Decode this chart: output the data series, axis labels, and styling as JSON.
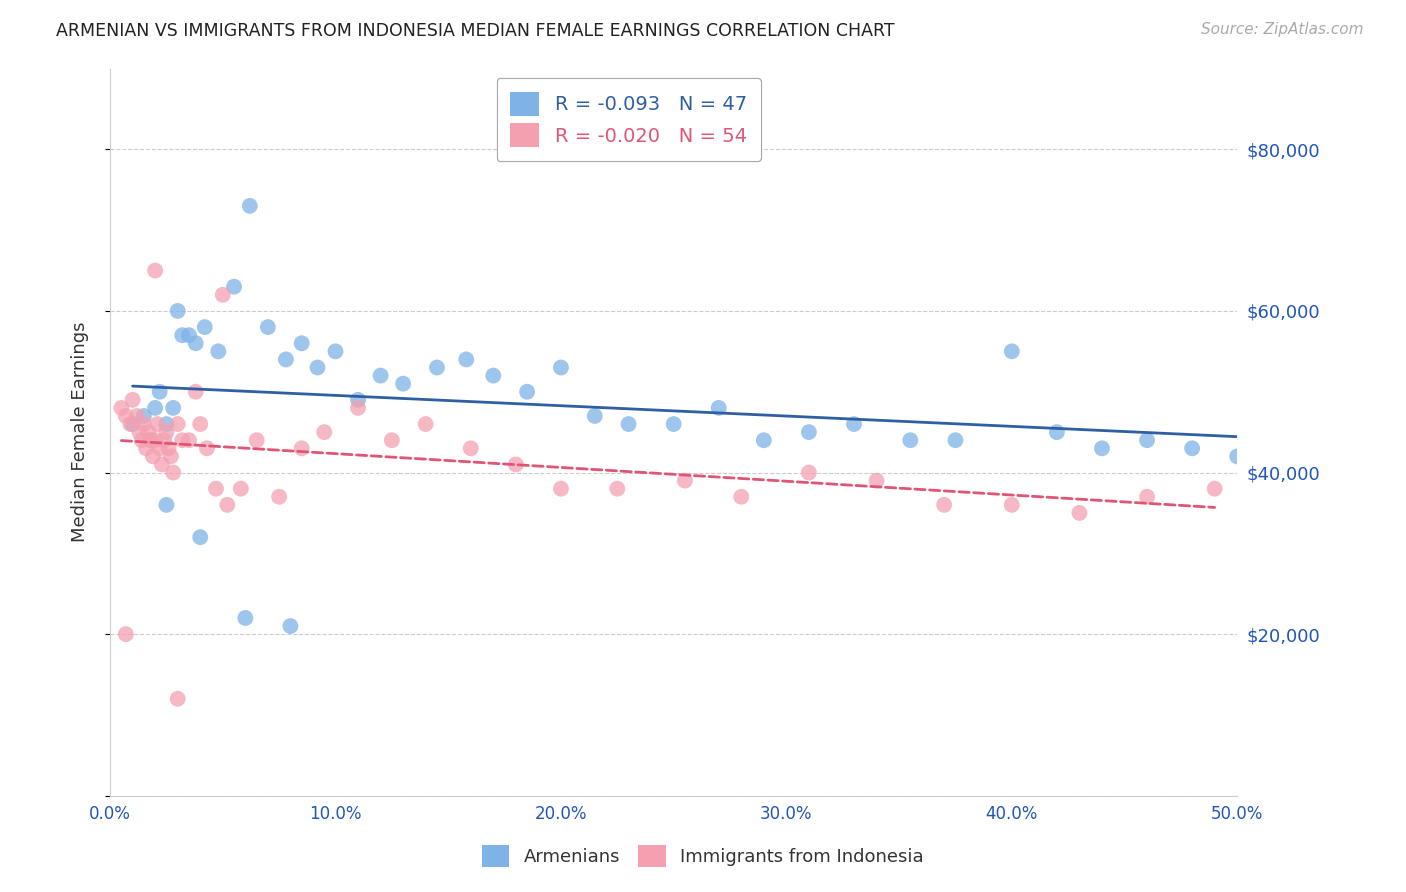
{
  "title": "ARMENIAN VS IMMIGRANTS FROM INDONESIA MEDIAN FEMALE EARNINGS CORRELATION CHART",
  "source": "Source: ZipAtlas.com",
  "ylabel": "Median Female Earnings",
  "xlim": [
    0.0,
    0.5
  ],
  "ylim": [
    0,
    90000
  ],
  "yticks": [
    0,
    20000,
    40000,
    60000,
    80000
  ],
  "ytick_labels_right": [
    "",
    "$20,000",
    "$40,000",
    "$60,000",
    "$80,000"
  ],
  "xtick_labels": [
    "0.0%",
    "10.0%",
    "20.0%",
    "30.0%",
    "40.0%",
    "50.0%"
  ],
  "xticks": [
    0.0,
    0.1,
    0.2,
    0.3,
    0.4,
    0.5
  ],
  "blue_color": "#7EB3E8",
  "pink_color": "#F4A0B0",
  "blue_line_color": "#2E5FA3",
  "pink_line_color": "#E05575",
  "title_color": "#222222",
  "axis_label_color": "#333333",
  "tick_color": "#2255BB",
  "grid_color": "#CCCCCC",
  "background_color": "#FFFFFF",
  "R_blue": -0.093,
  "N_blue": 47,
  "R_pink": -0.02,
  "N_pink": 54,
  "blue_scatter_x": [
    0.01,
    0.015,
    0.018,
    0.02,
    0.022,
    0.025,
    0.028,
    0.03,
    0.032,
    0.035,
    0.038,
    0.042,
    0.048,
    0.055,
    0.062,
    0.07,
    0.078,
    0.085,
    0.092,
    0.1,
    0.11,
    0.12,
    0.13,
    0.145,
    0.158,
    0.17,
    0.185,
    0.2,
    0.215,
    0.23,
    0.25,
    0.27,
    0.29,
    0.31,
    0.33,
    0.355,
    0.375,
    0.4,
    0.42,
    0.44,
    0.46,
    0.48,
    0.5,
    0.025,
    0.04,
    0.06,
    0.08
  ],
  "blue_scatter_y": [
    46000,
    47000,
    44000,
    48000,
    50000,
    46000,
    48000,
    60000,
    57000,
    57000,
    56000,
    58000,
    55000,
    63000,
    73000,
    58000,
    54000,
    56000,
    53000,
    55000,
    49000,
    52000,
    51000,
    53000,
    54000,
    52000,
    50000,
    53000,
    47000,
    46000,
    46000,
    48000,
    44000,
    45000,
    46000,
    44000,
    44000,
    55000,
    45000,
    43000,
    44000,
    43000,
    42000,
    36000,
    32000,
    22000,
    21000
  ],
  "pink_scatter_x": [
    0.005,
    0.007,
    0.009,
    0.01,
    0.012,
    0.013,
    0.014,
    0.015,
    0.016,
    0.017,
    0.018,
    0.019,
    0.02,
    0.021,
    0.022,
    0.023,
    0.024,
    0.025,
    0.026,
    0.027,
    0.028,
    0.03,
    0.032,
    0.035,
    0.038,
    0.04,
    0.043,
    0.047,
    0.052,
    0.058,
    0.065,
    0.075,
    0.085,
    0.095,
    0.11,
    0.125,
    0.14,
    0.16,
    0.18,
    0.2,
    0.225,
    0.255,
    0.28,
    0.31,
    0.34,
    0.37,
    0.4,
    0.43,
    0.46,
    0.49,
    0.007,
    0.03,
    0.05,
    0.02
  ],
  "pink_scatter_y": [
    48000,
    47000,
    46000,
    49000,
    47000,
    45000,
    44000,
    46000,
    43000,
    45000,
    44000,
    42000,
    44000,
    46000,
    43000,
    41000,
    44000,
    45000,
    43000,
    42000,
    40000,
    46000,
    44000,
    44000,
    50000,
    46000,
    43000,
    38000,
    36000,
    38000,
    44000,
    37000,
    43000,
    45000,
    48000,
    44000,
    46000,
    43000,
    41000,
    38000,
    38000,
    39000,
    37000,
    40000,
    39000,
    36000,
    36000,
    35000,
    37000,
    38000,
    20000,
    12000,
    62000,
    65000
  ]
}
